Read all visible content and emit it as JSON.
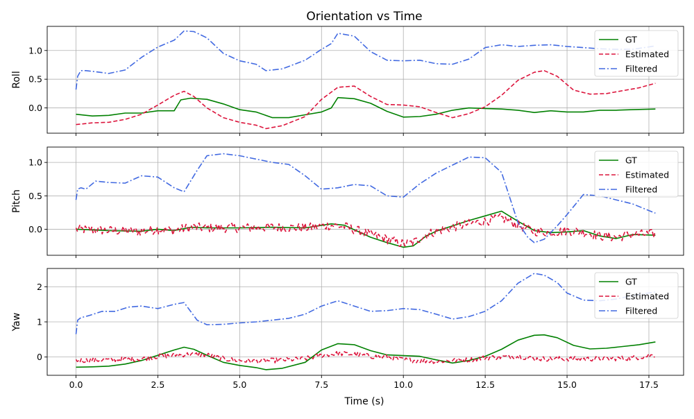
{
  "figure": {
    "title": "Orientation vs Time",
    "xlabel": "Time (s)",
    "legend_entries": [
      "GT",
      "Estimated",
      "Filtered"
    ]
  },
  "colors": {
    "gt": "#008000",
    "estimated": "#dc143c",
    "filtered": "#4169e1",
    "grid": "#b0b0b0",
    "axes": "#000000"
  },
  "chart_data": [
    {
      "type": "line",
      "title": "Orientation vs Time",
      "xlabel": "",
      "ylabel": "Roll",
      "xlim": [
        -0.88,
        18.56
      ],
      "ylim": [
        -0.44,
        1.42
      ],
      "xticks": [
        0.0,
        2.5,
        5.0,
        7.5,
        10.0,
        12.5,
        15.0,
        17.5
      ],
      "xtick_labels": [],
      "yticks": [
        0.0,
        0.5,
        1.0
      ],
      "ytick_labels": [
        "0.0",
        "0.5",
        "1.0"
      ],
      "grid": true,
      "legend": "top-right",
      "series": [
        {
          "name": "GT",
          "style": "solid",
          "x": [
            0,
            0.5,
            1.0,
            1.5,
            2.0,
            2.5,
            3.0,
            3.2,
            3.5,
            4.0,
            4.5,
            5.0,
            5.5,
            6.0,
            6.5,
            7.0,
            7.5,
            7.8,
            8.0,
            8.5,
            9.0,
            9.5,
            10.0,
            10.5,
            11.0,
            11.5,
            12.0,
            12.5,
            13.0,
            13.5,
            14.0,
            14.5,
            15.0,
            15.5,
            16.0,
            16.5,
            17.0,
            17.7
          ],
          "y": [
            -0.11,
            -0.14,
            -0.13,
            -0.09,
            -0.09,
            -0.05,
            -0.05,
            0.14,
            0.17,
            0.15,
            0.07,
            -0.03,
            -0.07,
            -0.17,
            -0.17,
            -0.12,
            -0.07,
            0.0,
            0.18,
            0.16,
            0.08,
            -0.06,
            -0.16,
            -0.15,
            -0.11,
            -0.04,
            0.0,
            -0.01,
            -0.02,
            -0.04,
            -0.08,
            -0.05,
            -0.07,
            -0.07,
            -0.04,
            -0.04,
            -0.03,
            -0.02
          ]
        },
        {
          "name": "Estimated",
          "style": "dashed",
          "x": [
            0,
            0.5,
            1.0,
            1.5,
            2.0,
            2.5,
            3.0,
            3.3,
            3.6,
            4.0,
            4.5,
            5.0,
            5.5,
            5.8,
            6.3,
            7.0,
            7.5,
            8.0,
            8.5,
            9.0,
            9.5,
            10.0,
            10.5,
            11.0,
            11.5,
            12.0,
            12.5,
            13.0,
            13.5,
            14.0,
            14.3,
            14.7,
            15.2,
            15.7,
            16.2,
            16.7,
            17.2,
            17.7
          ],
          "y": [
            -0.29,
            -0.26,
            -0.25,
            -0.2,
            -0.11,
            0.05,
            0.22,
            0.29,
            0.2,
            0.0,
            -0.17,
            -0.25,
            -0.3,
            -0.36,
            -0.31,
            -0.15,
            0.15,
            0.36,
            0.38,
            0.2,
            0.06,
            0.05,
            0.02,
            -0.08,
            -0.17,
            -0.1,
            0.02,
            0.22,
            0.48,
            0.62,
            0.65,
            0.55,
            0.31,
            0.24,
            0.25,
            0.3,
            0.35,
            0.43
          ]
        },
        {
          "name": "Filtered",
          "style": "dashdot",
          "x": [
            0,
            0.05,
            0.15,
            0.3,
            0.6,
            1.0,
            1.5,
            2.0,
            2.5,
            3.0,
            3.3,
            3.6,
            4.0,
            4.5,
            5.0,
            5.5,
            5.8,
            6.3,
            7.0,
            7.5,
            7.8,
            8.0,
            8.5,
            9.0,
            9.5,
            10.0,
            10.5,
            11.0,
            11.5,
            12.0,
            12.5,
            13.0,
            13.5,
            14.0,
            14.5,
            15.0,
            15.5,
            16.0,
            16.5,
            17.0,
            17.7
          ],
          "y": [
            0.32,
            0.55,
            0.65,
            0.65,
            0.63,
            0.6,
            0.66,
            0.88,
            1.06,
            1.18,
            1.34,
            1.33,
            1.22,
            0.95,
            0.82,
            0.76,
            0.65,
            0.68,
            0.83,
            1.02,
            1.12,
            1.3,
            1.25,
            0.98,
            0.83,
            0.82,
            0.83,
            0.77,
            0.76,
            0.85,
            1.05,
            1.1,
            1.07,
            1.09,
            1.1,
            1.07,
            1.05,
            1.03,
            1.02,
            1.02,
            1.08
          ]
        }
      ]
    },
    {
      "type": "line",
      "title": "",
      "xlabel": "",
      "ylabel": "Pitch",
      "xlim": [
        -0.88,
        18.56
      ],
      "ylim": [
        -0.39,
        1.23
      ],
      "xticks": [
        0.0,
        2.5,
        5.0,
        7.5,
        10.0,
        12.5,
        15.0,
        17.5
      ],
      "xtick_labels": [],
      "yticks": [
        0.0,
        0.5,
        1.0
      ],
      "ytick_labels": [
        "0.0",
        "0.5",
        "1.0"
      ],
      "grid": true,
      "legend": "top-right",
      "series": [
        {
          "name": "GT",
          "style": "solid",
          "x": [
            0,
            1.0,
            2.0,
            2.5,
            3.0,
            3.5,
            4.0,
            5.0,
            6.0,
            7.0,
            7.8,
            8.2,
            9.0,
            9.5,
            10.0,
            10.3,
            10.7,
            11.0,
            11.5,
            12.0,
            12.5,
            13.0,
            13.5,
            14.0,
            14.5,
            15.0,
            15.5,
            16.0,
            16.5,
            17.0,
            17.7
          ],
          "y": [
            0.0,
            -0.02,
            -0.03,
            0.0,
            -0.02,
            0.03,
            0.02,
            0.02,
            0.03,
            0.02,
            0.08,
            0.06,
            -0.12,
            -0.2,
            -0.27,
            -0.25,
            -0.1,
            -0.03,
            0.05,
            0.13,
            0.2,
            0.27,
            0.12,
            -0.02,
            -0.05,
            -0.04,
            -0.02,
            -0.1,
            -0.14,
            -0.08,
            -0.09
          ]
        },
        {
          "name": "Estimated",
          "style": "dashed",
          "noise": true,
          "x": [
            0,
            1.0,
            2.0,
            2.5,
            3.0,
            3.5,
            4.0,
            5.0,
            6.0,
            7.0,
            7.8,
            8.2,
            9.0,
            9.5,
            10.0,
            10.3,
            10.7,
            11.0,
            11.5,
            12.0,
            12.5,
            13.0,
            13.5,
            14.0,
            14.5,
            15.0,
            15.5,
            16.0,
            16.5,
            17.0,
            17.7
          ],
          "y": [
            0.0,
            -0.02,
            -0.03,
            0.0,
            -0.02,
            0.03,
            0.02,
            0.02,
            0.03,
            0.02,
            0.06,
            0.04,
            -0.08,
            -0.15,
            -0.22,
            -0.2,
            -0.08,
            -0.03,
            0.03,
            0.08,
            0.12,
            0.17,
            0.06,
            -0.03,
            -0.05,
            -0.02,
            -0.04,
            -0.1,
            -0.12,
            -0.08,
            -0.07
          ]
        },
        {
          "name": "Filtered",
          "style": "dashdot",
          "x": [
            0,
            0.05,
            0.15,
            0.3,
            0.6,
            1.0,
            1.5,
            2.0,
            2.5,
            3.0,
            3.3,
            3.7,
            4.0,
            4.5,
            5.0,
            5.5,
            6.0,
            6.5,
            7.0,
            7.5,
            8.0,
            8.5,
            9.0,
            9.5,
            10.0,
            10.5,
            11.0,
            11.5,
            12.0,
            12.5,
            13.0,
            13.5,
            13.8,
            14.0,
            14.3,
            14.7,
            15.0,
            15.5,
            16.0,
            16.5,
            17.0,
            17.7
          ],
          "y": [
            0.44,
            0.6,
            0.62,
            0.6,
            0.72,
            0.7,
            0.69,
            0.8,
            0.78,
            0.62,
            0.56,
            0.88,
            1.1,
            1.13,
            1.1,
            1.05,
            1.0,
            0.97,
            0.8,
            0.6,
            0.62,
            0.67,
            0.65,
            0.5,
            0.48,
            0.68,
            0.84,
            0.96,
            1.08,
            1.07,
            0.85,
            0.1,
            -0.12,
            -0.2,
            -0.15,
            0.05,
            0.22,
            0.52,
            0.5,
            0.44,
            0.38,
            0.24
          ]
        }
      ]
    },
    {
      "type": "line",
      "title": "",
      "xlabel": "Time (s)",
      "ylabel": "Yaw",
      "xlim": [
        -0.88,
        18.56
      ],
      "ylim": [
        -0.52,
        2.52
      ],
      "xticks": [
        0.0,
        2.5,
        5.0,
        7.5,
        10.0,
        12.5,
        15.0,
        17.5
      ],
      "xtick_labels": [
        "0.0",
        "2.5",
        "5.0",
        "7.5",
        "10.0",
        "12.5",
        "15.0",
        "17.5"
      ],
      "yticks": [
        0,
        1,
        2
      ],
      "ytick_labels": [
        "0",
        "1",
        "2"
      ],
      "grid": true,
      "legend": "top-right",
      "series": [
        {
          "name": "GT",
          "style": "solid",
          "x": [
            0,
            0.5,
            1.0,
            1.5,
            2.0,
            2.5,
            3.0,
            3.3,
            3.6,
            4.0,
            4.5,
            5.0,
            5.5,
            5.8,
            6.3,
            7.0,
            7.5,
            8.0,
            8.5,
            9.0,
            9.5,
            10.0,
            10.5,
            11.0,
            11.5,
            12.0,
            12.5,
            13.0,
            13.5,
            14.0,
            14.3,
            14.7,
            15.2,
            15.7,
            16.2,
            16.7,
            17.2,
            17.7
          ],
          "y": [
            -0.29,
            -0.28,
            -0.26,
            -0.2,
            -0.1,
            0.05,
            0.2,
            0.28,
            0.22,
            0.05,
            -0.15,
            -0.24,
            -0.3,
            -0.36,
            -0.32,
            -0.15,
            0.2,
            0.38,
            0.35,
            0.18,
            0.06,
            0.04,
            0.02,
            -0.08,
            -0.17,
            -0.1,
            0.02,
            0.22,
            0.48,
            0.62,
            0.63,
            0.55,
            0.33,
            0.23,
            0.25,
            0.3,
            0.35,
            0.43
          ]
        },
        {
          "name": "Estimated",
          "style": "dashed",
          "noise": true,
          "x": [
            0,
            1.0,
            2.0,
            2.5,
            3.0,
            3.5,
            4.0,
            4.5,
            5.0,
            5.5,
            6.0,
            7.0,
            7.5,
            8.0,
            8.5,
            9.0,
            9.5,
            10.0,
            11.0,
            12.0,
            12.5,
            13.0,
            13.5,
            14.0,
            15.0,
            16.0,
            17.0,
            17.7
          ],
          "y": [
            -0.1,
            -0.08,
            -0.05,
            0.02,
            0.05,
            0.08,
            0.06,
            -0.05,
            -0.1,
            -0.12,
            -0.1,
            -0.05,
            0.05,
            0.1,
            0.08,
            0.02,
            0.0,
            -0.08,
            -0.12,
            -0.08,
            -0.02,
            0.0,
            0.02,
            -0.05,
            -0.05,
            -0.05,
            -0.03,
            0.06
          ]
        },
        {
          "name": "Filtered",
          "style": "dashdot",
          "x": [
            0,
            0.05,
            0.15,
            0.4,
            0.8,
            1.2,
            1.6,
            2.0,
            2.5,
            3.0,
            3.3,
            3.7,
            4.0,
            4.5,
            5.0,
            5.5,
            6.0,
            6.5,
            7.0,
            7.5,
            8.0,
            8.5,
            9.0,
            9.5,
            10.0,
            10.5,
            11.0,
            11.5,
            12.0,
            12.5,
            13.0,
            13.5,
            14.0,
            14.3,
            14.7,
            15.0,
            15.5,
            16.0,
            16.5,
            17.0,
            17.7
          ],
          "y": [
            0.65,
            1.05,
            1.12,
            1.18,
            1.3,
            1.3,
            1.42,
            1.45,
            1.38,
            1.5,
            1.55,
            1.05,
            0.92,
            0.93,
            0.97,
            1.0,
            1.05,
            1.1,
            1.22,
            1.45,
            1.6,
            1.45,
            1.3,
            1.32,
            1.38,
            1.35,
            1.22,
            1.08,
            1.15,
            1.3,
            1.6,
            2.1,
            2.38,
            2.33,
            2.12,
            1.82,
            1.62,
            1.6,
            1.65,
            1.75,
            1.85
          ]
        }
      ]
    }
  ]
}
